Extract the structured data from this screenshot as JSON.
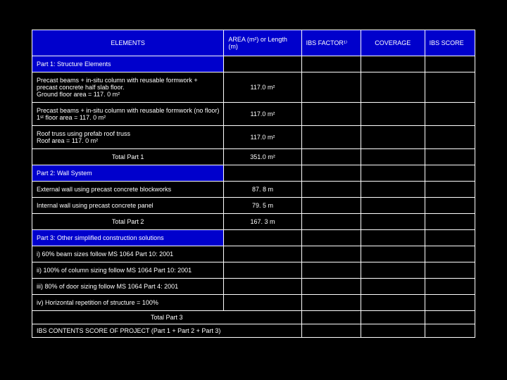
{
  "headers": {
    "elements": "ELEMENTS",
    "area": "AREA (m²) or Length (m)",
    "factor": "IBS FACTOR¹⁾",
    "coverage": "COVERAGE",
    "score": "IBS SCORE"
  },
  "sections": {
    "part1": "Part 1: Structure Elements",
    "part2": "Part 2: Wall System",
    "part3": "Part 3: Other simplified construction solutions"
  },
  "rows": {
    "r1_label": "Precast beams + in-situ column with reusable formwork + precast concrete half slab floor.\nGround floor area = 117. 0 m²",
    "r1_val": "117.0 m²",
    "r2_label": "Precast beams + in-situ column with reusable formwork (no floor)\n1ˢᵗ floor area = 117. 0 m²",
    "r2_val": "117.0 m²",
    "r3_label": "Roof truss using prefab roof truss\nRoof area = 117. 0 m²",
    "r3_val": "117.0 m²",
    "total1_label": "Total  Part  1",
    "total1_val": "351.0 m²",
    "r4_label": "External wall using precast concrete blockworks",
    "r4_val": "87. 8 m",
    "r5_label": "Internal wall using precast concrete panel",
    "r5_val": "79. 5 m",
    "total2_label": "Total Part 2",
    "total2_val": "167. 3 m",
    "r6_label": "i) 60% beam sizes follow MS 1064 Part 10: 2001",
    "r7_label": "ii) 100% of column sizing follow MS 1064 Part 10: 2001",
    "r8_label": "iii) 80% of door sizing follow MS 1064 Part 4: 2001",
    "r9_label": "iv) Horizontal repetition of structure = 100%",
    "total3_label": "Total Part 3",
    "final_label": "IBS CONTENTS SCORE OF PROJECT (Part 1 + Part 2 + Part 3)"
  },
  "colors": {
    "header_bg": "#0000cc",
    "bg": "#000000",
    "border": "#ffffff",
    "text": "#ffffff"
  }
}
